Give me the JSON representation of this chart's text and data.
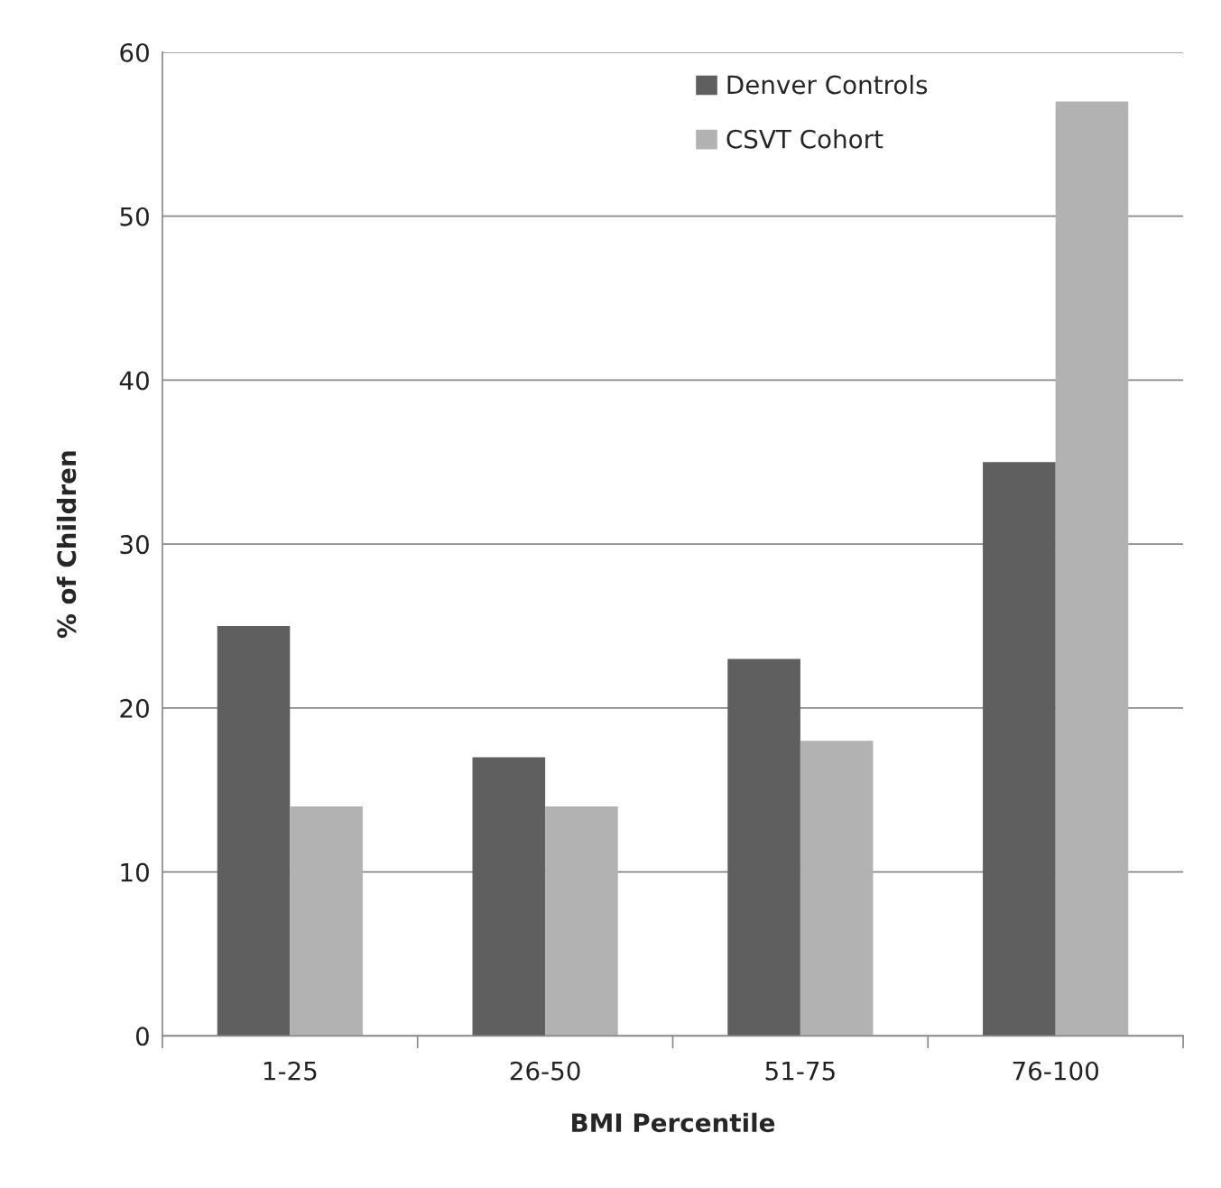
{
  "chart_data": {
    "type": "bar",
    "xlabel": "BMI Percentile",
    "ylabel": "% of Children",
    "categories": [
      "1-25",
      "26-50",
      "51-75",
      "76-100"
    ],
    "series": [
      {
        "name": "Denver Controls",
        "color": "#5f5f5f",
        "values": [
          25,
          17,
          23,
          35
        ]
      },
      {
        "name": "CSVT Cohort",
        "color": "#b2b2b2",
        "values": [
          14,
          14,
          18,
          57
        ]
      }
    ],
    "ylim": [
      0,
      60
    ],
    "yticks": [
      0,
      10,
      20,
      30,
      40,
      50,
      60
    ],
    "grid": "y",
    "legend": "top right"
  }
}
